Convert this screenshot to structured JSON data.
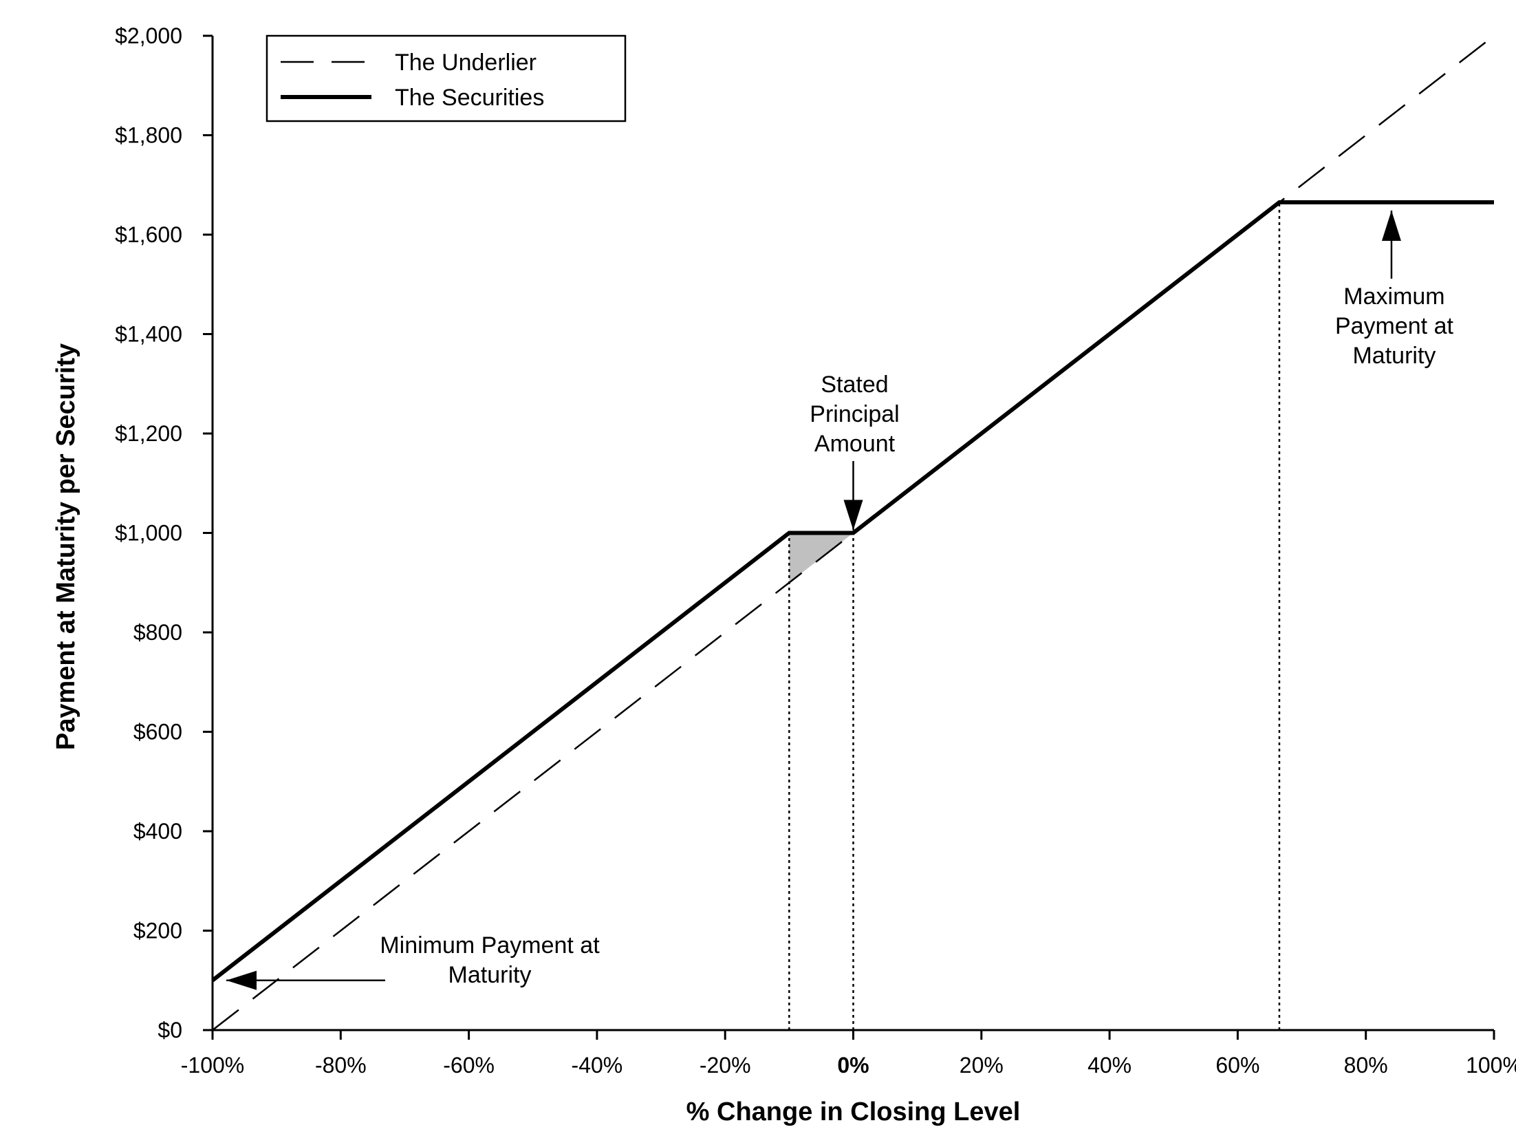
{
  "chart_data": {
    "type": "line",
    "xlabel": "% Change in Closing Level",
    "ylabel": "Payment at Maturity per Security",
    "xlim": [
      -100,
      100
    ],
    "ylim": [
      0,
      2000
    ],
    "x_ticks": [
      -100,
      -80,
      -60,
      -40,
      -20,
      0,
      20,
      40,
      60,
      80,
      100
    ],
    "x_tick_labels": [
      "-100%",
      "-80%",
      "-60%",
      "-40%",
      "-20%",
      "0%",
      "20%",
      "40%",
      "60%",
      "80%",
      "100%"
    ],
    "y_ticks": [
      0,
      200,
      400,
      600,
      800,
      1000,
      1200,
      1400,
      1600,
      1800,
      2000
    ],
    "y_tick_labels": [
      "$0",
      "$200",
      "$400",
      "$600",
      "$800",
      "$1,000",
      "$1,200",
      "$1,400",
      "$1,600",
      "$1,800",
      "$2,000"
    ],
    "grid": false,
    "legend_position": "top-left",
    "series": [
      {
        "name": "The Underlier",
        "style": "dashed",
        "color": "#000000",
        "x": [
          -100,
          100
        ],
        "y": [
          0,
          2000
        ]
      },
      {
        "name": "The Securities",
        "style": "solid-thick",
        "color": "#000000",
        "x": [
          -100,
          -10,
          0,
          66.5,
          100
        ],
        "y": [
          100,
          1000,
          1000,
          1665,
          1665
        ]
      }
    ],
    "reference_lines_x": [
      -10,
      0,
      66.5
    ],
    "shaded_region": {
      "color": "#c0c0c0",
      "points": [
        [
          -10,
          900
        ],
        [
          -10,
          1000
        ],
        [
          0,
          1000
        ]
      ]
    },
    "annotations": [
      {
        "lines": [
          "Stated",
          "Principal",
          "Amount"
        ],
        "arrow_to": [
          0,
          1000
        ],
        "arrow_dir": "down"
      },
      {
        "lines": [
          "Maximum",
          "Payment at",
          "Maturity"
        ],
        "arrow_to": [
          84,
          1665
        ],
        "arrow_dir": "up"
      },
      {
        "lines": [
          "Minimum Payment at",
          "Maturity"
        ],
        "arrow_to": [
          -100,
          100
        ],
        "arrow_dir": "left"
      }
    ]
  }
}
